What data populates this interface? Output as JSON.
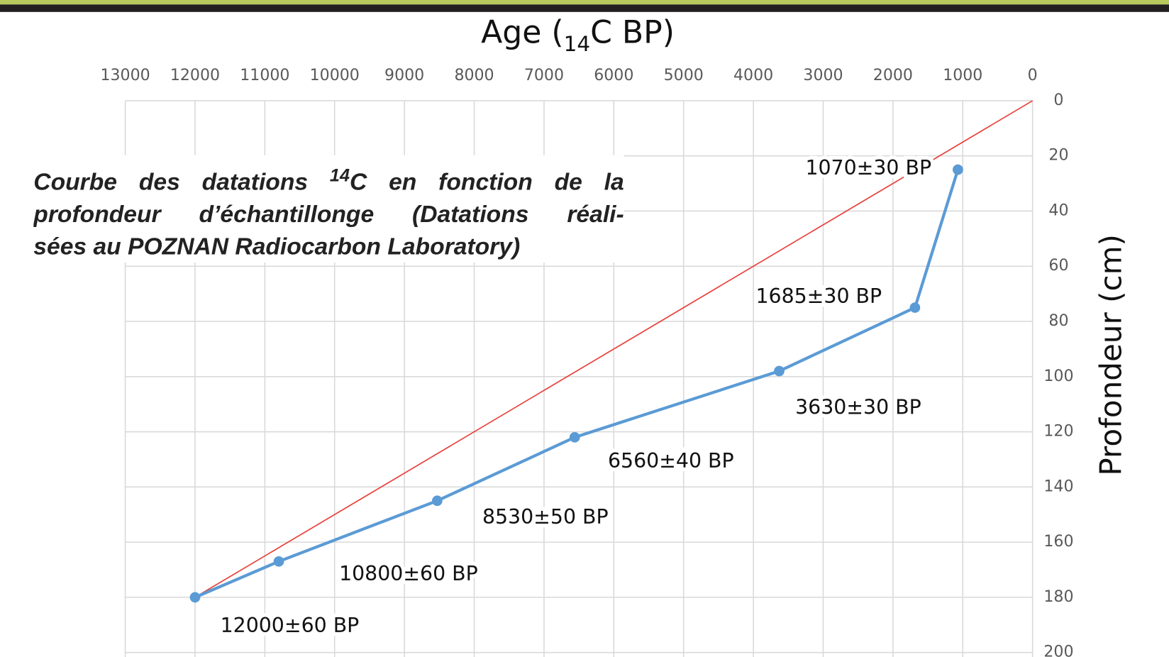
{
  "chart_data": {
    "type": "line",
    "xlabel": [
      "Age (",
      "14",
      "C BP)"
    ],
    "ylabel": "Profondeur (cm)",
    "note": [
      "Courbe des datations ",
      "14",
      "C en fonction de la",
      "profondeur d’échantillonge (Datations réali-",
      "sées au POZNAN Radiocarbon Laboratory)"
    ],
    "xlim": [
      13000,
      0
    ],
    "xticks": [
      13000,
      12000,
      11000,
      10000,
      9000,
      8000,
      7000,
      6000,
      5000,
      4000,
      3000,
      2000,
      1000,
      0
    ],
    "ylim": [
      200,
      0
    ],
    "yticks": [
      0,
      20,
      40,
      60,
      80,
      100,
      120,
      140,
      160,
      180,
      200
    ],
    "grid": true,
    "series": [
      {
        "color": "#e8403a",
        "markers": false,
        "x": [
          0,
          12000
        ],
        "values": [
          0,
          180
        ]
      },
      {
        "color": "#5b9bd5",
        "markers": true,
        "x": [
          12000,
          10800,
          8530,
          6560,
          3630,
          1685,
          1070
        ],
        "values": [
          180,
          167,
          145,
          122,
          98,
          75,
          25
        ],
        "annotations": [
          "12000±60  BP",
          "10800±60  BP",
          "8530±50  BP",
          "6560±40  BP",
          "3630±30  BP",
          "1685±30  BP",
          "1070±30  BP"
        ]
      }
    ]
  }
}
